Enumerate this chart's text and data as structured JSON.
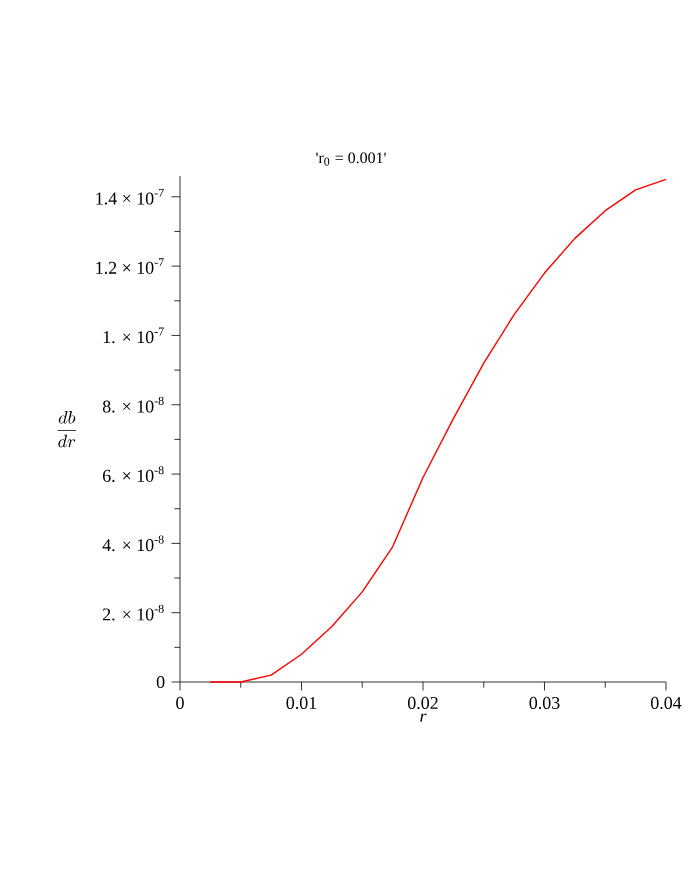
{
  "chart_data": {
    "type": "line",
    "title": "'r$_{0}$ = 0.001'",
    "xlabel": "r",
    "ylabel": "\\frac{db}{dr}",
    "x": [
      0.0025,
      0.005,
      0.0075,
      0.01,
      0.0125,
      0.015,
      0.0175,
      0.02,
      0.0225,
      0.025,
      0.0275,
      0.03,
      0.0325,
      0.035,
      0.0375,
      0.04
    ],
    "series": [
      {
        "color": "#ff0000",
        "values": [
          0,
          0,
          2e-09,
          8e-09,
          1.6e-08,
          2.6e-08,
          3.9e-08,
          5.9e-08,
          7.6e-08,
          9.2e-08,
          1.06e-07,
          1.18e-07,
          1.28e-07,
          1.36e-07,
          1.42e-07,
          1.45e-07
        ]
      }
    ],
    "xlim": [
      0,
      0.04
    ],
    "ylim": [
      0,
      1.46e-07
    ],
    "xticks": [
      0,
      0.01,
      0.02,
      0.03,
      0.04
    ],
    "yticks": [
      0,
      {
        "value": 2e-08,
        "label": "2. × 10$^{-8}$"
      },
      {
        "value": 4e-08,
        "label": "4. × 10$^{-8}$"
      },
      {
        "value": 6e-08,
        "label": "6. × 10$^{-8}$"
      },
      {
        "value": 8e-08,
        "label": "8. × 10$^{-8}$"
      },
      {
        "value": 1e-07,
        "label": "1. × 10$^{-7}$"
      },
      {
        "value": 1.2e-07,
        "label": "1.2 × 10$^{-7}$"
      },
      {
        "value": 1.4e-07,
        "label": "1.4 × 10$^{-7}$"
      }
    ],
    "grid": false,
    "marker": "none",
    "line_style": "solid"
  }
}
